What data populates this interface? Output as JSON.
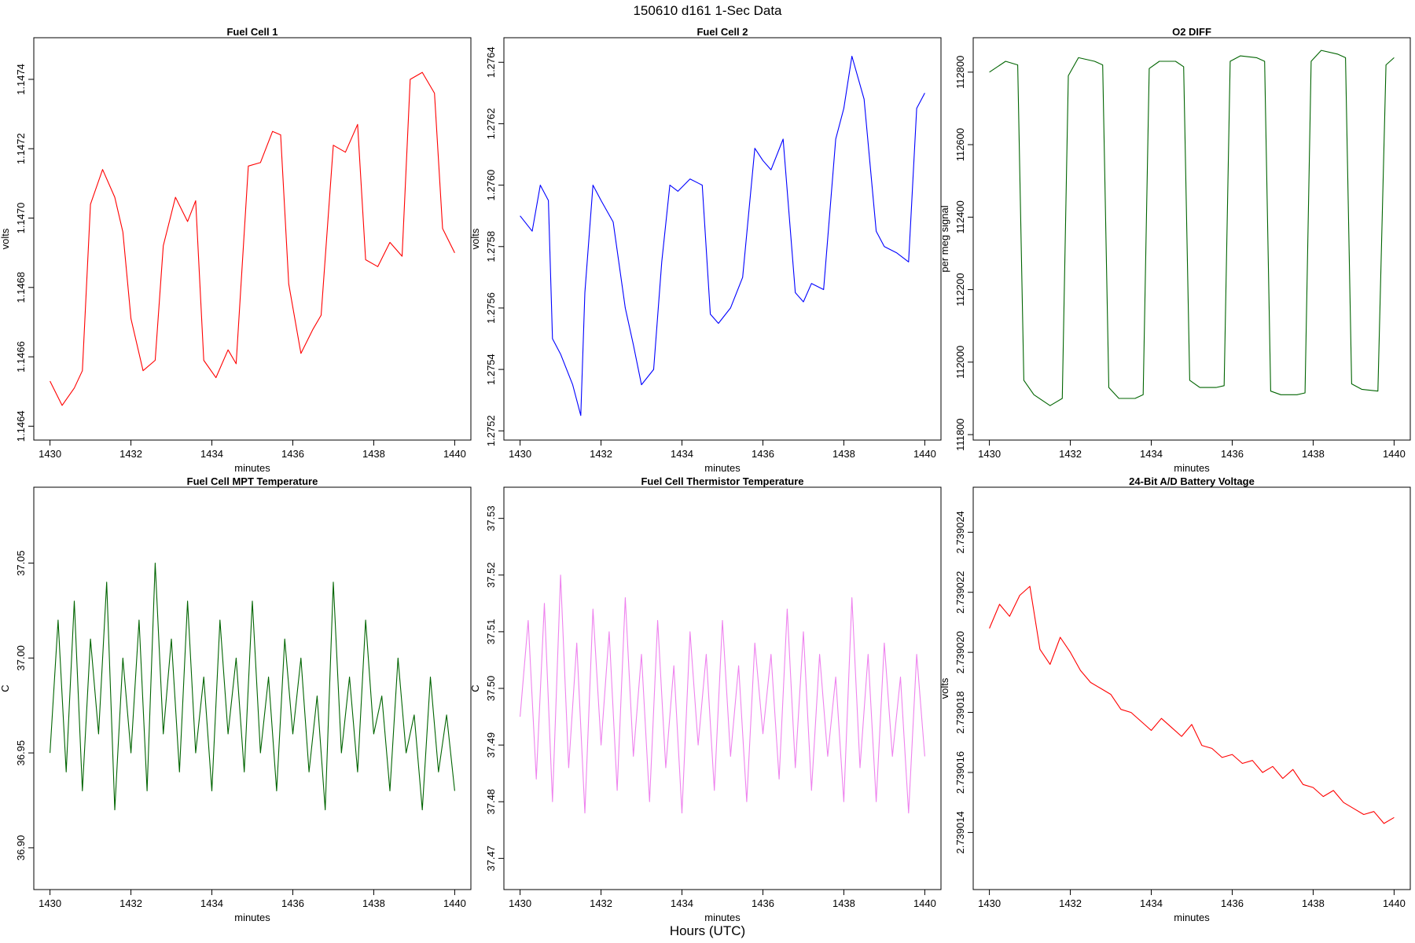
{
  "figure": {
    "title": "150610   d161   1-Sec Data",
    "xlabel": "Hours (UTC)"
  },
  "chart_data": [
    {
      "type": "line",
      "title": "Fuel Cell 1",
      "xlabel": "minutes",
      "ylabel": "volts",
      "color": "#ff0000",
      "xlim": [
        1429.6,
        1440.4
      ],
      "ylim": [
        1.14636,
        1.14752
      ],
      "xticks": [
        "1430",
        "1432",
        "1434",
        "1436",
        "1438",
        "1440"
      ],
      "yticks": [
        "1.1464",
        "1.1466",
        "1.1468",
        "1.1470",
        "1.1472",
        "1.1474"
      ],
      "x": [
        1430.0,
        1430.3,
        1430.6,
        1430.8,
        1431.0,
        1431.3,
        1431.6,
        1431.8,
        1432.0,
        1432.3,
        1432.6,
        1432.8,
        1433.1,
        1433.4,
        1433.6,
        1433.8,
        1434.1,
        1434.4,
        1434.6,
        1434.9,
        1435.2,
        1435.5,
        1435.7,
        1435.9,
        1436.2,
        1436.5,
        1436.7,
        1437.0,
        1437.3,
        1437.6,
        1437.8,
        1438.1,
        1438.4,
        1438.7,
        1438.9,
        1439.2,
        1439.5,
        1439.7,
        1440.0
      ],
      "values": [
        1.14653,
        1.14646,
        1.14651,
        1.14656,
        1.14704,
        1.14714,
        1.14706,
        1.14696,
        1.14671,
        1.14656,
        1.14659,
        1.14692,
        1.14706,
        1.14699,
        1.14705,
        1.14659,
        1.14654,
        1.14662,
        1.14658,
        1.14715,
        1.14716,
        1.14725,
        1.14724,
        1.14681,
        1.14661,
        1.14668,
        1.14672,
        1.14721,
        1.14719,
        1.14727,
        1.14688,
        1.14686,
        1.14693,
        1.14689,
        1.1474,
        1.14742,
        1.14736,
        1.14697,
        1.1469
      ]
    },
    {
      "type": "line",
      "title": "Fuel Cell 2",
      "xlabel": "minutes",
      "ylabel": "volts",
      "color": "#0000ff",
      "xlim": [
        1429.6,
        1440.4
      ],
      "ylim": [
        1.27517,
        1.27648
      ],
      "xticks": [
        "1430",
        "1432",
        "1434",
        "1436",
        "1438",
        "1440"
      ],
      "yticks": [
        "1.2752",
        "1.2754",
        "1.2756",
        "1.2758",
        "1.2760",
        "1.2762",
        "1.2764"
      ],
      "x": [
        1430.0,
        1430.3,
        1430.5,
        1430.7,
        1430.8,
        1431.0,
        1431.3,
        1431.5,
        1431.6,
        1431.8,
        1432.0,
        1432.3,
        1432.6,
        1432.8,
        1433.0,
        1433.3,
        1433.5,
        1433.7,
        1433.9,
        1434.2,
        1434.5,
        1434.7,
        1434.9,
        1435.2,
        1435.5,
        1435.8,
        1436.0,
        1436.2,
        1436.5,
        1436.8,
        1437.0,
        1437.2,
        1437.5,
        1437.8,
        1438.0,
        1438.2,
        1438.5,
        1438.8,
        1439.0,
        1439.3,
        1439.6,
        1439.8,
        1440.0
      ],
      "values": [
        1.2759,
        1.27585,
        1.276,
        1.27595,
        1.2755,
        1.27545,
        1.27535,
        1.27525,
        1.27565,
        1.276,
        1.27595,
        1.27588,
        1.2756,
        1.27548,
        1.27535,
        1.2754,
        1.27575,
        1.276,
        1.27598,
        1.27602,
        1.276,
        1.27558,
        1.27555,
        1.2756,
        1.2757,
        1.27612,
        1.27608,
        1.27605,
        1.27615,
        1.27565,
        1.27562,
        1.27568,
        1.27566,
        1.27615,
        1.27625,
        1.27642,
        1.27628,
        1.27585,
        1.2758,
        1.27578,
        1.27575,
        1.27625,
        1.2763
      ]
    },
    {
      "type": "line",
      "title": "O2 DIFF",
      "xlabel": "minutes",
      "ylabel": "per meg signal",
      "color": "#006400",
      "xlim": [
        1429.6,
        1440.4
      ],
      "ylim": [
        111785,
        112895
      ],
      "xticks": [
        "1430",
        "1432",
        "1434",
        "1436",
        "1438",
        "1440"
      ],
      "yticks": [
        "111800",
        "112000",
        "112200",
        "112400",
        "112600",
        "112800"
      ],
      "x": [
        1430.0,
        1430.4,
        1430.7,
        1430.85,
        1431.1,
        1431.5,
        1431.8,
        1431.95,
        1432.2,
        1432.6,
        1432.8,
        1432.95,
        1433.2,
        1433.6,
        1433.8,
        1433.95,
        1434.2,
        1434.6,
        1434.8,
        1434.95,
        1435.2,
        1435.6,
        1435.8,
        1435.95,
        1436.2,
        1436.6,
        1436.8,
        1436.95,
        1437.2,
        1437.6,
        1437.8,
        1437.95,
        1438.2,
        1438.6,
        1438.8,
        1438.95,
        1439.2,
        1439.6,
        1439.8,
        1440.0
      ],
      "values": [
        112800,
        112830,
        112820,
        111950,
        111910,
        111880,
        111900,
        112790,
        112840,
        112830,
        112820,
        111930,
        111900,
        111900,
        111910,
        112810,
        112830,
        112830,
        112815,
        111950,
        111930,
        111930,
        111935,
        112830,
        112845,
        112840,
        112830,
        111920,
        111910,
        111910,
        111915,
        112830,
        112860,
        112850,
        112840,
        111940,
        111925,
        111920,
        112820,
        112840
      ]
    },
    {
      "type": "line",
      "title": "Fuel Cell MPT Temperature",
      "xlabel": "minutes",
      "ylabel": "C",
      "color": "#006400",
      "xlim": [
        1429.6,
        1440.4
      ],
      "ylim": [
        36.878,
        37.09
      ],
      "xticks": [
        "1430",
        "1432",
        "1434",
        "1436",
        "1438",
        "1440"
      ],
      "yticks": [
        "36.90",
        "36.95",
        "37.00",
        "37.05"
      ],
      "x": [
        1430.0,
        1430.2,
        1430.4,
        1430.6,
        1430.8,
        1431.0,
        1431.2,
        1431.4,
        1431.6,
        1431.8,
        1432.0,
        1432.2,
        1432.4,
        1432.6,
        1432.8,
        1433.0,
        1433.2,
        1433.4,
        1433.6,
        1433.8,
        1434.0,
        1434.2,
        1434.4,
        1434.6,
        1434.8,
        1435.0,
        1435.2,
        1435.4,
        1435.6,
        1435.8,
        1436.0,
        1436.2,
        1436.4,
        1436.6,
        1436.8,
        1437.0,
        1437.2,
        1437.4,
        1437.6,
        1437.8,
        1438.0,
        1438.2,
        1438.4,
        1438.6,
        1438.8,
        1439.0,
        1439.2,
        1439.4,
        1439.6,
        1439.8,
        1440.0
      ],
      "values": [
        36.95,
        37.02,
        36.94,
        37.03,
        36.93,
        37.01,
        36.96,
        37.04,
        36.92,
        37.0,
        36.95,
        37.02,
        36.93,
        37.05,
        36.96,
        37.01,
        36.94,
        37.03,
        36.95,
        36.99,
        36.93,
        37.02,
        36.96,
        37.0,
        36.94,
        37.03,
        36.95,
        36.99,
        36.93,
        37.01,
        36.96,
        37.0,
        36.94,
        36.98,
        36.92,
        37.04,
        36.95,
        36.99,
        36.94,
        37.02,
        36.96,
        36.98,
        36.93,
        37.0,
        36.95,
        36.97,
        36.92,
        36.99,
        36.94,
        36.97,
        36.93
      ]
    },
    {
      "type": "line",
      "title": "Fuel Cell Thermistor Temperature",
      "xlabel": "minutes",
      "ylabel": "C",
      "color": "#ee82ee",
      "xlim": [
        1429.6,
        1440.4
      ],
      "ylim": [
        37.4645,
        37.5355
      ],
      "xticks": [
        "1430",
        "1432",
        "1434",
        "1436",
        "1438",
        "1440"
      ],
      "yticks": [
        "37.47",
        "37.48",
        "37.49",
        "37.50",
        "37.51",
        "37.52",
        "37.53"
      ],
      "x": [
        1430.0,
        1430.2,
        1430.4,
        1430.6,
        1430.8,
        1431.0,
        1431.2,
        1431.4,
        1431.6,
        1431.8,
        1432.0,
        1432.2,
        1432.4,
        1432.6,
        1432.8,
        1433.0,
        1433.2,
        1433.4,
        1433.6,
        1433.8,
        1434.0,
        1434.2,
        1434.4,
        1434.6,
        1434.8,
        1435.0,
        1435.2,
        1435.4,
        1435.6,
        1435.8,
        1436.0,
        1436.2,
        1436.4,
        1436.6,
        1436.8,
        1437.0,
        1437.2,
        1437.4,
        1437.6,
        1437.8,
        1438.0,
        1438.2,
        1438.4,
        1438.6,
        1438.8,
        1439.0,
        1439.2,
        1439.4,
        1439.6,
        1439.8,
        1440.0
      ],
      "values": [
        37.495,
        37.512,
        37.484,
        37.515,
        37.48,
        37.52,
        37.486,
        37.508,
        37.478,
        37.514,
        37.49,
        37.51,
        37.482,
        37.516,
        37.488,
        37.506,
        37.48,
        37.512,
        37.486,
        37.504,
        37.478,
        37.51,
        37.49,
        37.506,
        37.482,
        37.512,
        37.488,
        37.504,
        37.48,
        37.508,
        37.492,
        37.506,
        37.484,
        37.514,
        37.486,
        37.51,
        37.482,
        37.506,
        37.488,
        37.502,
        37.48,
        37.516,
        37.486,
        37.506,
        37.48,
        37.508,
        37.488,
        37.502,
        37.478,
        37.506,
        37.488
      ]
    },
    {
      "type": "line",
      "title": "24-Bit A/D Battery Voltage",
      "xlabel": "minutes",
      "ylabel": "volts",
      "color": "#ff0000",
      "xlim": [
        1429.6,
        1440.4
      ],
      "ylim": [
        2.7390121,
        2.7390255
      ],
      "xticks": [
        "1430",
        "1432",
        "1434",
        "1436",
        "1438",
        "1440"
      ],
      "yticks": [
        "2.739014",
        "2.739016",
        "2.739018",
        "2.739020",
        "2.739022",
        "2.739024"
      ],
      "x": [
        1430.0,
        1430.25,
        1430.5,
        1430.75,
        1431.0,
        1431.25,
        1431.5,
        1431.75,
        1432.0,
        1432.25,
        1432.5,
        1432.75,
        1433.0,
        1433.25,
        1433.5,
        1433.75,
        1434.0,
        1434.25,
        1434.5,
        1434.75,
        1435.0,
        1435.25,
        1435.5,
        1435.75,
        1436.0,
        1436.25,
        1436.5,
        1436.75,
        1437.0,
        1437.25,
        1437.5,
        1437.75,
        1438.0,
        1438.25,
        1438.5,
        1438.75,
        1439.0,
        1439.25,
        1439.5,
        1439.75,
        1440.0
      ],
      "values": [
        2.7390208,
        2.7390216,
        2.7390212,
        2.7390219,
        2.7390222,
        2.7390201,
        2.7390196,
        2.7390205,
        2.73902,
        2.7390194,
        2.739019,
        2.7390188,
        2.7390186,
        2.7390181,
        2.739018,
        2.7390177,
        2.7390174,
        2.7390178,
        2.7390175,
        2.7390172,
        2.7390176,
        2.7390169,
        2.7390168,
        2.7390165,
        2.7390166,
        2.7390163,
        2.7390164,
        2.739016,
        2.7390162,
        2.7390158,
        2.7390161,
        2.7390156,
        2.7390155,
        2.7390152,
        2.7390154,
        2.739015,
        2.7390148,
        2.7390146,
        2.7390147,
        2.7390143,
        2.7390145
      ]
    }
  ]
}
